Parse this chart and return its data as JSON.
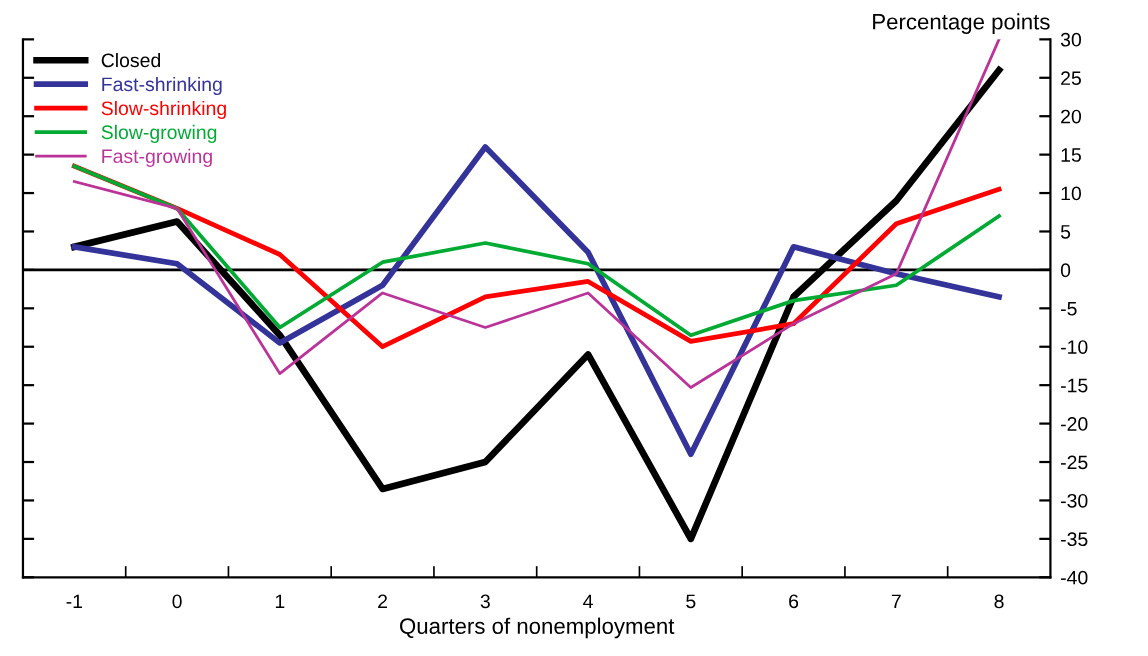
{
  "chart_data": {
    "type": "line",
    "xlabel": "Quarters of nonemployment",
    "ylabel": "Percentage points",
    "categories": [
      "-1",
      "0",
      "1",
      "2",
      "3",
      "4",
      "5",
      "6",
      "7",
      "8"
    ],
    "series": [
      {
        "name": "Closed",
        "color": "#000000",
        "values": [
          3,
          6.3,
          -8.5,
          -28.5,
          -25,
          -11,
          -35,
          -3.5,
          9,
          26
        ]
      },
      {
        "name": "Fast-shrinking",
        "color": "#333399",
        "values": [
          3,
          0.8,
          -9.5,
          -2,
          16,
          2.3,
          -24,
          3,
          -0.5,
          -3.5
        ]
      },
      {
        "name": "Slow-shrinking",
        "color": "#ff0000",
        "values": [
          13.5,
          8,
          2,
          -10,
          -3.5,
          -1.5,
          -9.3,
          -7,
          6,
          10.5
        ]
      },
      {
        "name": "Slow-growing",
        "color": "#00aa33",
        "values": [
          13.5,
          8,
          -7.5,
          1,
          3.5,
          0.8,
          -8.5,
          -4,
          -2,
          7
        ]
      },
      {
        "name": "Fast-growing",
        "color": "#bb3399",
        "values": [
          11.5,
          8,
          -13.5,
          -3,
          -7.5,
          -3,
          -15.3,
          -7,
          -0.5,
          30
        ]
      }
    ],
    "ylim": [
      -40,
      30
    ],
    "yticks": [
      -40,
      -35,
      -30,
      -25,
      -20,
      -15,
      -10,
      -5,
      0,
      5,
      10,
      15,
      20,
      25,
      30
    ],
    "ref_lines": [
      {
        "axis": "y",
        "value": 0,
        "color": "#000000"
      }
    ],
    "legend": "top left",
    "grid": false,
    "marker": "none",
    "line_style": "solid"
  }
}
